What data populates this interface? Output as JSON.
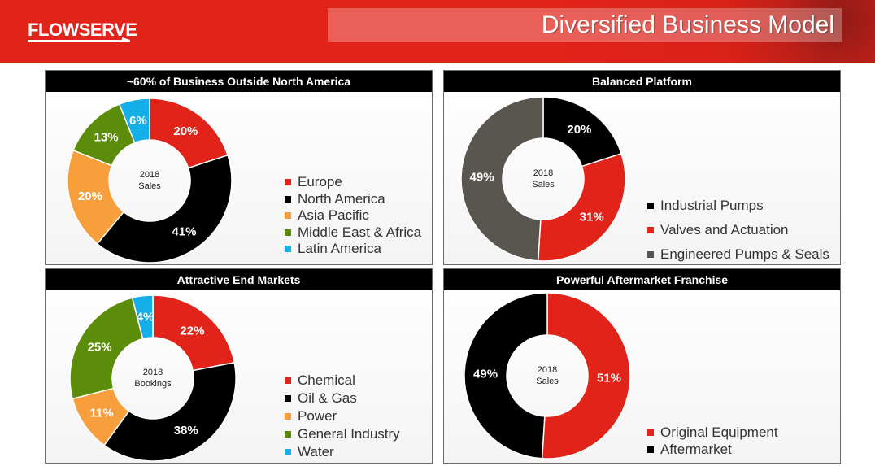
{
  "header": {
    "logo_text": "FLOWSERVE",
    "title": "Diversified Business Model"
  },
  "colors": {
    "brand_red": "#e2231a",
    "black": "#000000",
    "orange": "#f79f3d",
    "green": "#5b8c0a",
    "cyan": "#14aee8",
    "gray": "#595650"
  },
  "chart_data": [
    {
      "type": "pie",
      "title": "~60% of Business Outside North America",
      "center_label": [
        "2018",
        "Sales"
      ],
      "slices": [
        {
          "name": "Europe",
          "value": 20,
          "label": "20%",
          "color": "#e2231a"
        },
        {
          "name": "North America",
          "value": 41,
          "label": "41%",
          "color": "#000000"
        },
        {
          "name": "Asia Pacific",
          "value": 20,
          "label": "20%",
          "color": "#f79f3d"
        },
        {
          "name": "Middle East & Africa",
          "value": 13,
          "label": "13%",
          "color": "#5b8c0a"
        },
        {
          "name": "Latin America",
          "value": 6,
          "label": "6%",
          "color": "#14aee8"
        }
      ],
      "legend": [
        "Europe",
        "North America",
        "Asia Pacific",
        "Middle East & Africa",
        "Latin America"
      ],
      "legend_placement": "right"
    },
    {
      "type": "pie",
      "title": "Balanced Platform",
      "center_label": [
        "2018",
        "Sales"
      ],
      "slices": [
        {
          "name": "Industrial Pumps",
          "value": 20,
          "label": "20%",
          "color": "#000000"
        },
        {
          "name": "Valves and Actuation",
          "value": 31,
          "label": "31%",
          "color": "#e2231a"
        },
        {
          "name": "Engineered Pumps & Seals",
          "value": 49,
          "label": "49%",
          "color": "#595650"
        }
      ],
      "legend": [
        "Industrial Pumps",
        "Valves and Actuation",
        "Engineered Pumps & Seals"
      ],
      "legend_placement": "right"
    },
    {
      "type": "pie",
      "title": "Attractive End Markets",
      "center_label": [
        "2018",
        "Bookings"
      ],
      "slices": [
        {
          "name": "Chemical",
          "value": 22,
          "label": "22%",
          "color": "#e2231a"
        },
        {
          "name": "Oil & Gas",
          "value": 38,
          "label": "38%",
          "color": "#000000"
        },
        {
          "name": "Power",
          "value": 11,
          "label": "11%",
          "color": "#f79f3d"
        },
        {
          "name": "General Industry",
          "value": 25,
          "label": "25%",
          "color": "#5b8c0a"
        },
        {
          "name": "Water",
          "value": 4,
          "label": "4%",
          "color": "#14aee8"
        }
      ],
      "legend": [
        "Chemical",
        "Oil & Gas",
        "Power",
        "General Industry",
        "Water"
      ],
      "legend_placement": "right"
    },
    {
      "type": "pie",
      "title": "Powerful Aftermarket Franchise",
      "center_label": [
        "2018",
        "Sales"
      ],
      "slices": [
        {
          "name": "Original Equipment",
          "value": 51,
          "label": "51%",
          "color": "#e2231a"
        },
        {
          "name": "Aftermarket",
          "value": 49,
          "label": "49%",
          "color": "#000000"
        }
      ],
      "legend": [
        "Original Equipment",
        "Aftermarket"
      ],
      "legend_placement": "right"
    }
  ]
}
